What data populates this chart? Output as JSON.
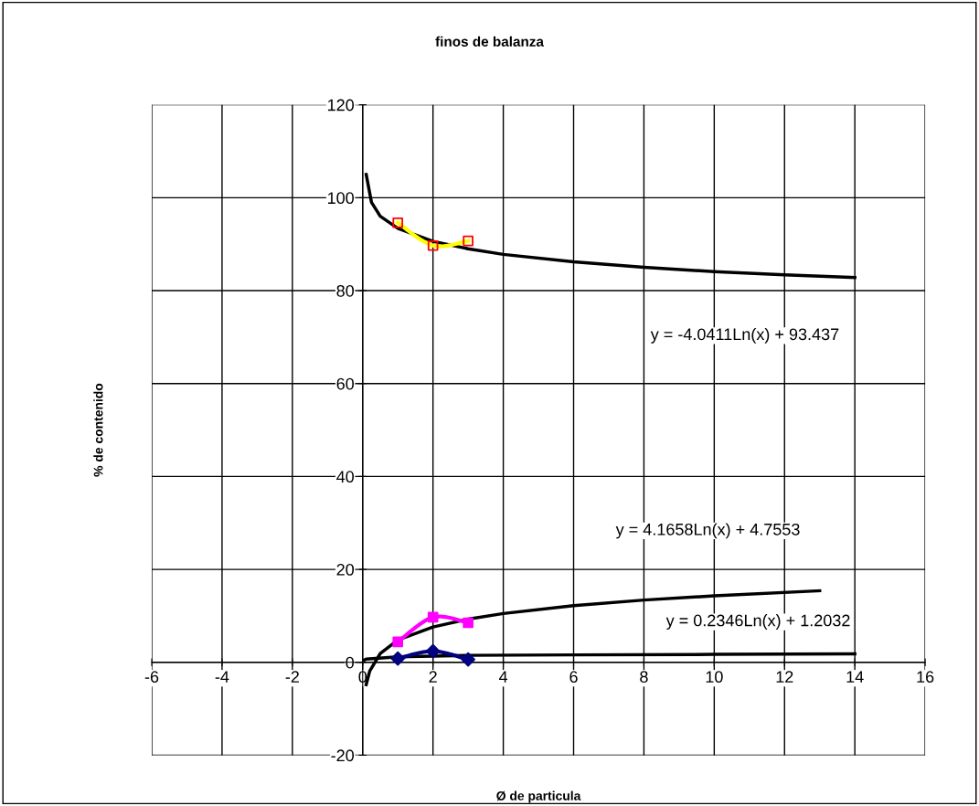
{
  "chart_data": {
    "type": "line",
    "title": "finos de balanza",
    "xlabel": "Ø de particula",
    "ylabel": "% de contenido",
    "xlim": [
      -6,
      16
    ],
    "xticks": [
      -6,
      -4,
      -2,
      0,
      2,
      4,
      6,
      8,
      10,
      12,
      14,
      16
    ],
    "ylim": [
      -20,
      120
    ],
    "yticks": [
      -20,
      0,
      20,
      40,
      60,
      80,
      100,
      120
    ],
    "grid": true,
    "legend": false,
    "series": [
      {
        "color": "#ffff00",
        "x": [
          1,
          2,
          3
        ],
        "values": [
          94.6,
          89.7,
          90.7
        ],
        "marker": "none"
      },
      {
        "type": "scatter",
        "color": "#ff0000",
        "x": [
          1,
          2,
          3
        ],
        "values": [
          94.6,
          89.7,
          90.7
        ],
        "marker": "square"
      },
      {
        "color": "#ff00ff",
        "x": [
          1,
          2,
          3
        ],
        "values": [
          4.4,
          9.7,
          8.5
        ],
        "marker": "square"
      },
      {
        "color": "#000080",
        "x": [
          1,
          2,
          3
        ],
        "values": [
          0.8,
          2.4,
          0.6
        ],
        "marker": "diamond"
      },
      {
        "color": "#000000",
        "x": [
          0.1,
          0.25,
          0.5,
          1,
          2,
          3,
          4,
          6,
          8,
          10,
          12,
          14
        ],
        "values": [
          105,
          99,
          96,
          93.4,
          90.6,
          89,
          87.8,
          86.2,
          85,
          84.1,
          83.4,
          82.8
        ],
        "marker": "none"
      },
      {
        "color": "#000000",
        "x": [
          0.1,
          0.2,
          0.5,
          1,
          2,
          3,
          4,
          6,
          8,
          10,
          13
        ],
        "values": [
          -4.8,
          -1.9,
          1.9,
          4.8,
          7.6,
          9.3,
          10.5,
          12.2,
          13.4,
          14.3,
          15.4
        ],
        "marker": "none"
      },
      {
        "color": "#000000",
        "x": [
          0.05,
          0.1,
          1,
          3,
          6,
          10,
          14
        ],
        "values": [
          0.5,
          0.7,
          1.2,
          1.5,
          1.6,
          1.7,
          1.8
        ],
        "marker": "none"
      }
    ],
    "annotations": [
      "y = -4.0411Ln(x) + 93.437",
      "y = 4.1658Ln(x) + 4.7553",
      "y = 0.2346Ln(x) + 1.2032"
    ]
  }
}
